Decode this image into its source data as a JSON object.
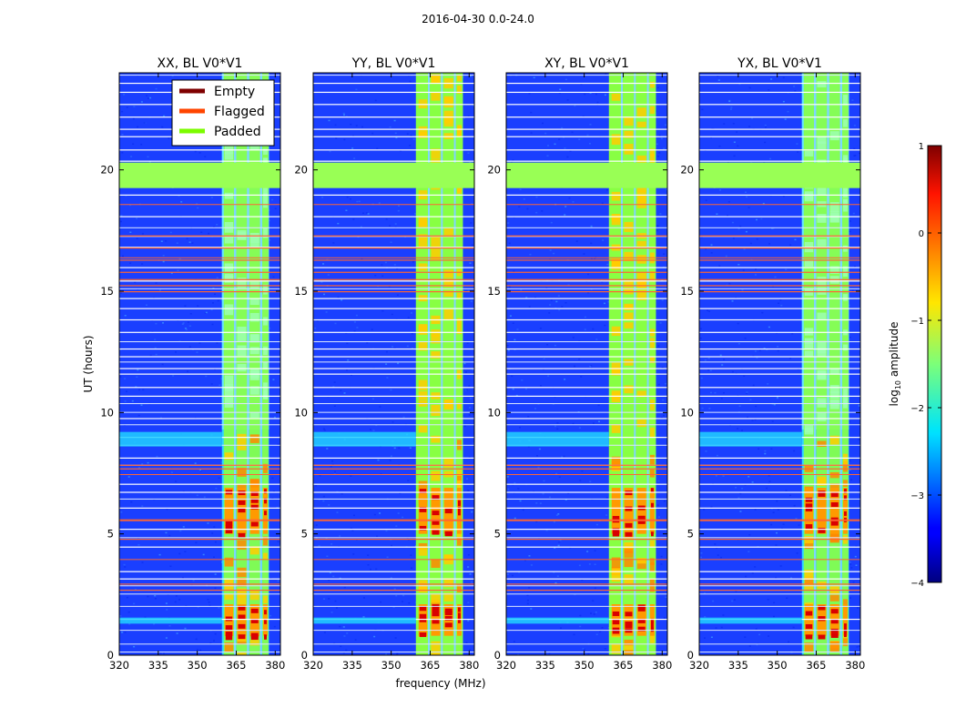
{
  "figure": {
    "suptitle": "2016-04-30 0.0-24.0",
    "xlabel": "frequency (MHz)",
    "ylabel": "UT (hours)",
    "colorbar_label": "log",
    "colorbar_label_sub": "10",
    "colorbar_label_suffix": " amplitude"
  },
  "legend": {
    "entries": [
      {
        "label": "Empty",
        "color": "#7f0000"
      },
      {
        "label": "Flagged",
        "color": "#ff4500"
      },
      {
        "label": "Padded",
        "color": "#7cfc00"
      }
    ]
  },
  "chart_data": {
    "type": "heatmap",
    "panels": [
      {
        "title": "XX, BL V0*V1",
        "weak_band": true
      },
      {
        "title": "YY, BL V0*V1",
        "weak_band": false
      },
      {
        "title": "XY, BL V0*V1",
        "weak_band": false
      },
      {
        "title": "YX, BL V0*V1",
        "weak_band": true
      }
    ],
    "x_range": [
      320,
      382
    ],
    "x_ticks": [
      320,
      335,
      350,
      365,
      380
    ],
    "y_range": [
      0,
      24
    ],
    "y_ticks": [
      0,
      5,
      10,
      15,
      20
    ],
    "colorbar": {
      "range": [
        -4,
        1
      ],
      "ticks": [
        1,
        0,
        -1,
        -2,
        -3,
        -4
      ],
      "tick_labels": [
        "1",
        "0",
        "−1",
        "−2",
        "−3",
        "−4"
      ]
    },
    "padded_time_ranges": [
      [
        19.25,
        20.3
      ]
    ],
    "band_edges_mhz": [
      359.5,
      377.6
    ],
    "channel_gaps_mhz": [
      364.5,
      369.5,
      374.5
    ],
    "colors": {
      "background_low": "#1a3fff",
      "padded": "#99ff55",
      "flagged": "#ff6633",
      "band_mid": "#88ff44",
      "band_high": "#ffcc00",
      "band_peak": "#d90000"
    }
  }
}
